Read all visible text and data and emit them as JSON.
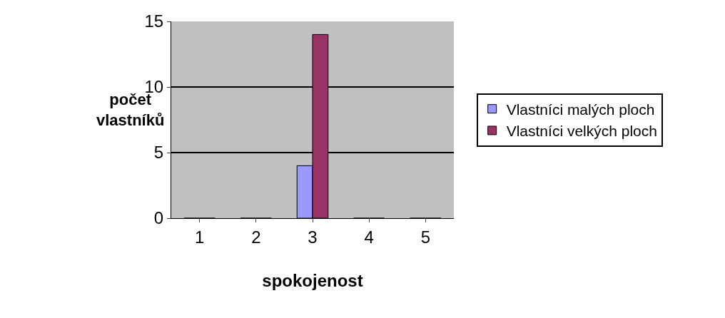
{
  "chart_data": {
    "type": "bar",
    "xlabel": "spokojenost",
    "ylabel": "počet vlastníků",
    "categories": [
      "1",
      "2",
      "3",
      "4",
      "5"
    ],
    "series": [
      {
        "name": "Vlastníci malých ploch",
        "color": "#9999ff",
        "values": [
          0,
          0,
          4,
          0,
          0
        ]
      },
      {
        "name": "Vlastníci velkých ploch",
        "color": "#993366",
        "values": [
          0,
          0,
          14,
          0,
          0
        ]
      }
    ],
    "ylim": [
      0,
      15
    ],
    "yticks": [
      0,
      5,
      10,
      15
    ],
    "grid": "y",
    "legend": "right"
  }
}
